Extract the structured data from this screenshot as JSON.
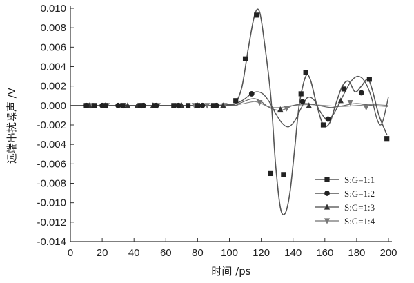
{
  "chart_data": {
    "type": "line",
    "title": "",
    "xlabel": "时间 /ps",
    "ylabel": "远端串扰噪声 /V",
    "xlim": [
      0,
      200
    ],
    "ylim": [
      -0.014,
      0.01
    ],
    "xticks": [
      "0",
      "20",
      "40",
      "60",
      "80",
      "100",
      "120",
      "140",
      "160",
      "180",
      "200"
    ],
    "xtick_values": [
      0,
      20,
      40,
      60,
      80,
      100,
      120,
      140,
      160,
      180,
      200
    ],
    "yticks": [
      "0.010",
      "0.008",
      "0.006",
      "0.004",
      "0.002",
      "0.000",
      "-0.002",
      "-0.004",
      "-0.006",
      "-0.008",
      "-0.010",
      "-0.012",
      "-0.014"
    ],
    "ytick_values": [
      0.01,
      0.008,
      0.006,
      0.004,
      0.002,
      0.0,
      -0.002,
      -0.004,
      -0.006,
      -0.008,
      -0.01,
      -0.012,
      -0.014
    ],
    "grid": false,
    "legend_position": "bottom-right",
    "series": [
      {
        "name": "S:G=1:1",
        "marker": "square",
        "curve": [
          [
            0,
            0
          ],
          [
            30,
            0
          ],
          [
            60,
            0
          ],
          [
            90,
            0
          ],
          [
            100,
            0.0001
          ],
          [
            104,
            0.0003
          ],
          [
            108,
            0.002
          ],
          [
            112,
            0.006
          ],
          [
            116,
            0.0094
          ],
          [
            119,
            0.0096
          ],
          [
            122,
            0.0065
          ],
          [
            126,
            0.001
          ],
          [
            129,
            -0.006
          ],
          [
            132,
            -0.0105
          ],
          [
            135,
            -0.0111
          ],
          [
            138,
            -0.009
          ],
          [
            141,
            -0.0045
          ],
          [
            144,
            0.0002
          ],
          [
            148,
            0.003
          ],
          [
            151,
            0.0026
          ],
          [
            155,
            0.0
          ],
          [
            159,
            -0.002
          ],
          [
            163,
            -0.0018
          ],
          [
            167,
            0.0002
          ],
          [
            171,
            0.002
          ],
          [
            175,
            0.0025
          ],
          [
            179,
            0.0014
          ],
          [
            183,
            0.002
          ],
          [
            187,
            0.0027
          ],
          [
            190,
            0.0015
          ],
          [
            194,
            -0.001
          ],
          [
            199,
            -0.003
          ]
        ],
        "markers": [
          [
            10,
            0
          ],
          [
            15,
            0
          ],
          [
            22,
            0
          ],
          [
            33,
            0
          ],
          [
            44,
            0
          ],
          [
            53,
            0
          ],
          [
            65,
            0
          ],
          [
            74,
            0
          ],
          [
            80,
            0
          ],
          [
            90,
            0
          ],
          [
            104,
            0.0005
          ],
          [
            110,
            0.0048
          ],
          [
            117,
            0.0093
          ],
          [
            126,
            -0.007
          ],
          [
            134,
            -0.0071
          ],
          [
            145,
            0.0012
          ],
          [
            148,
            0.0034
          ],
          [
            159,
            -0.002
          ],
          [
            172,
            0.0017
          ],
          [
            188,
            0.0027
          ],
          [
            199,
            -0.0034
          ]
        ]
      },
      {
        "name": "S:G=1:2",
        "marker": "circle",
        "curve": [
          [
            0,
            0
          ],
          [
            60,
            0
          ],
          [
            95,
            0
          ],
          [
            102,
            0.0001
          ],
          [
            108,
            0.0005
          ],
          [
            113,
            0.0011
          ],
          [
            117,
            0.0014
          ],
          [
            121,
            0.0012
          ],
          [
            125,
            0.0004
          ],
          [
            129,
            -0.0008
          ],
          [
            133,
            -0.0018
          ],
          [
            137,
            -0.0022
          ],
          [
            141,
            -0.0016
          ],
          [
            145,
            -0.0003
          ],
          [
            149,
            0.0008
          ],
          [
            153,
            0.0006
          ],
          [
            157,
            -0.0006
          ],
          [
            161,
            -0.0014
          ],
          [
            165,
            -0.001
          ],
          [
            169,
            0.0002
          ],
          [
            173,
            0.0015
          ],
          [
            177,
            0.0026
          ],
          [
            181,
            0.003
          ],
          [
            185,
            0.0025
          ],
          [
            189,
            0.001
          ],
          [
            193,
            -0.0015
          ],
          [
            196,
            -0.0018
          ],
          [
            200,
            0.0009
          ]
        ],
        "markers": [
          [
            10,
            0
          ],
          [
            20,
            0
          ],
          [
            30,
            0
          ],
          [
            46,
            0
          ],
          [
            54,
            0
          ],
          [
            68,
            0
          ],
          [
            83,
            0
          ],
          [
            92,
            0
          ],
          [
            114,
            0.0012
          ],
          [
            146,
            0.0004
          ],
          [
            162,
            -0.0014
          ],
          [
            183,
            0.0013
          ]
        ]
      },
      {
        "name": "S:G=1:3",
        "marker": "triangle-up",
        "curve": [
          [
            0,
            0
          ],
          [
            60,
            0
          ],
          [
            100,
            0
          ],
          [
            106,
            0.0002
          ],
          [
            112,
            0.0006
          ],
          [
            116,
            0.0007
          ],
          [
            120,
            0.0004
          ],
          [
            124,
            -0.0001
          ],
          [
            128,
            -0.0004
          ],
          [
            132,
            -0.0005
          ],
          [
            136,
            -0.0003
          ],
          [
            140,
            0
          ],
          [
            148,
            0.0002
          ],
          [
            156,
            0
          ],
          [
            164,
            -0.0002
          ],
          [
            172,
            0
          ],
          [
            180,
            0.0002
          ],
          [
            190,
            0
          ],
          [
            200,
            -0.0001
          ]
        ],
        "markers": [
          [
            12,
            0
          ],
          [
            22,
            0
          ],
          [
            36,
            0
          ],
          [
            42,
            0
          ],
          [
            52,
            0
          ],
          [
            70,
            0
          ],
          [
            80,
            0
          ],
          [
            96,
            0
          ],
          [
            132,
            -0.0004
          ],
          [
            150,
            0
          ],
          [
            170,
            0.0005
          ]
        ]
      },
      {
        "name": "S:G=1:4",
        "marker": "triangle-down",
        "curve": [
          [
            0,
            0
          ],
          [
            60,
            0
          ],
          [
            100,
            0
          ],
          [
            106,
            0.0001
          ],
          [
            112,
            0.0003
          ],
          [
            116,
            0.0004
          ],
          [
            120,
            0.0002
          ],
          [
            124,
            -0.0001
          ],
          [
            128,
            -0.0002
          ],
          [
            132,
            -0.0002
          ],
          [
            136,
            -0.0001
          ],
          [
            140,
            0
          ],
          [
            150,
            0.0001
          ],
          [
            160,
            0
          ],
          [
            170,
            -0.0001
          ],
          [
            180,
            0
          ],
          [
            190,
            0.0001
          ],
          [
            200,
            0
          ]
        ],
        "markers": [
          [
            13,
            0
          ],
          [
            23,
            0
          ],
          [
            33,
            0
          ],
          [
            45,
            0
          ],
          [
            55,
            0
          ],
          [
            68,
            0
          ],
          [
            78,
            0
          ],
          [
            86,
            0
          ],
          [
            97,
            0
          ],
          [
            119,
            0.0003
          ],
          [
            136,
            -0.0003
          ],
          [
            176,
            0.0003
          ],
          [
            186,
            -0.0002
          ]
        ]
      }
    ]
  }
}
